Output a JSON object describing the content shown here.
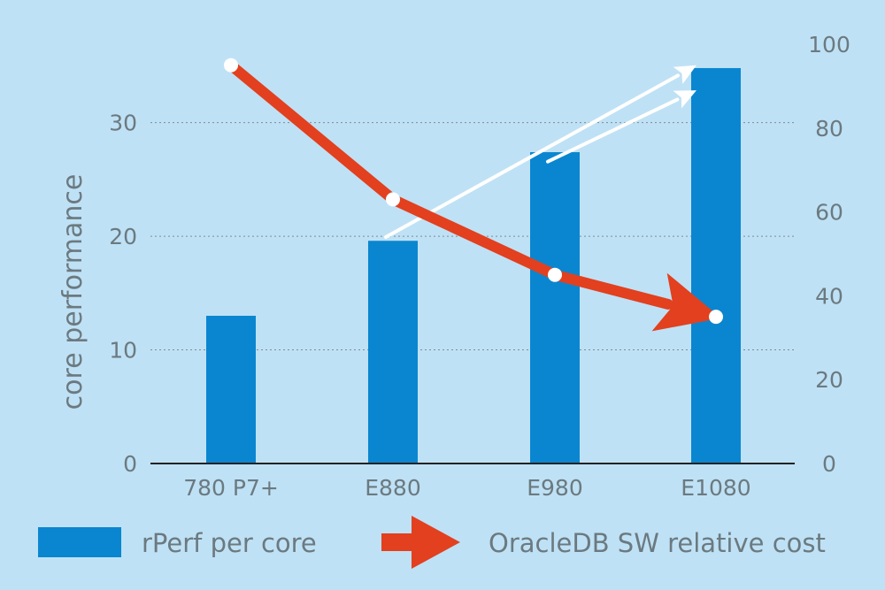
{
  "chart_data": {
    "type": "bar",
    "categories": [
      "780 P7+",
      "E880",
      "E980",
      "E1080"
    ],
    "series": [
      {
        "name": "rPerf per core",
        "type": "bar",
        "axis": "left",
        "values": [
          13.0,
          19.6,
          27.4,
          34.8
        ]
      },
      {
        "name": "OracleDB SW relative cost",
        "type": "line",
        "axis": "right",
        "values": [
          95,
          63,
          45,
          35
        ]
      }
    ],
    "ylabel": "core performance",
    "ylim": [
      0,
      36.9
    ],
    "yticks": [
      0,
      10,
      20,
      30
    ],
    "y2lim": [
      0,
      100
    ],
    "y2ticks": [
      0,
      20,
      40,
      60,
      80,
      100
    ],
    "grid": "horizontal dotted",
    "legend": "bottom",
    "colors": {
      "background": "#bfe1f5",
      "bar": "#0a86d0",
      "line": "#e2401f",
      "trend_arrows": "#ffffff",
      "text": "#6b7a80"
    },
    "annotations": [
      {
        "type": "trend-arrow",
        "from": {
          "category": "E880",
          "y2": 54
        },
        "to": {
          "category": "E1080",
          "y2": 95
        }
      },
      {
        "type": "trend-arrow",
        "from": {
          "category": "E980",
          "y2": 72
        },
        "to": {
          "category": "E1080",
          "y2": 89
        }
      }
    ]
  }
}
